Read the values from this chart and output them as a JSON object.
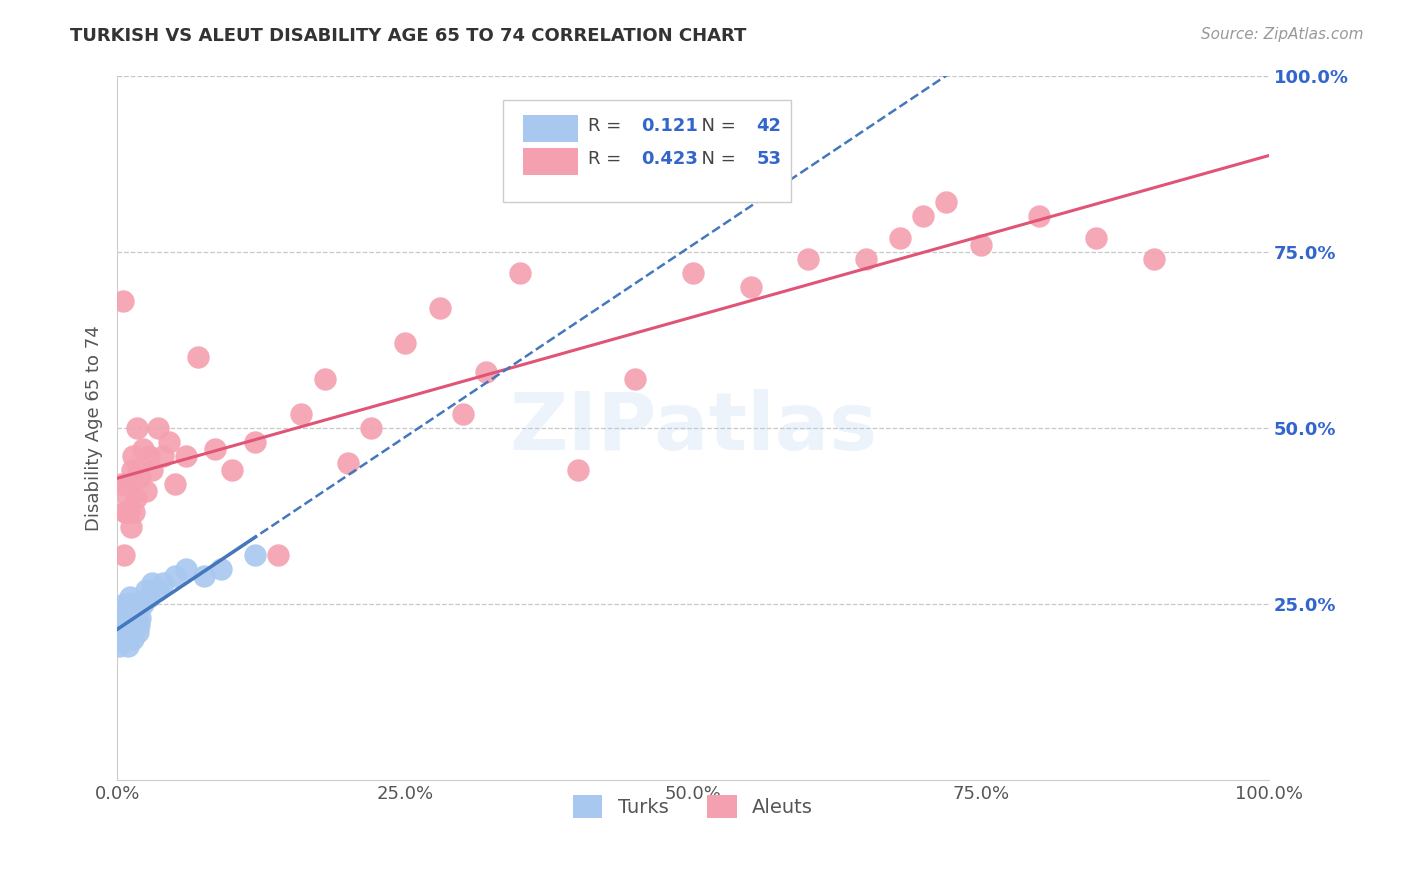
{
  "title": "TURKISH VS ALEUT DISABILITY AGE 65 TO 74 CORRELATION CHART",
  "source": "Source: ZipAtlas.com",
  "ylabel": "Disability Age 65 to 74",
  "xlim": [
    0,
    1
  ],
  "ylim": [
    0,
    1
  ],
  "xticks": [
    0,
    0.25,
    0.5,
    0.75,
    1.0
  ],
  "yticks": [
    0.25,
    0.5,
    0.75,
    1.0
  ],
  "xtick_labels": [
    "0.0%",
    "25.0%",
    "50.0%",
    "75.0%",
    "100.0%"
  ],
  "ytick_labels": [
    "25.0%",
    "50.0%",
    "75.0%",
    "100.0%"
  ],
  "turks_R": 0.121,
  "turks_N": 42,
  "aleuts_R": 0.423,
  "aleuts_N": 53,
  "turks_color": "#a8c8f0",
  "aleuts_color": "#f4a0b0",
  "turks_line_color": "#4477bb",
  "aleuts_line_color": "#e05575",
  "background_color": "#ffffff",
  "grid_color": "#c8c8c8",
  "turks_x": [
    0.002,
    0.003,
    0.004,
    0.004,
    0.005,
    0.005,
    0.006,
    0.006,
    0.007,
    0.007,
    0.008,
    0.008,
    0.009,
    0.009,
    0.01,
    0.01,
    0.011,
    0.011,
    0.012,
    0.012,
    0.013,
    0.013,
    0.014,
    0.015,
    0.015,
    0.016,
    0.016,
    0.017,
    0.018,
    0.019,
    0.02,
    0.022,
    0.025,
    0.028,
    0.03,
    0.035,
    0.04,
    0.05,
    0.06,
    0.075,
    0.09,
    0.12
  ],
  "turks_y": [
    0.19,
    0.2,
    0.22,
    0.24,
    0.2,
    0.23,
    0.21,
    0.25,
    0.2,
    0.22,
    0.21,
    0.24,
    0.19,
    0.23,
    0.22,
    0.25,
    0.2,
    0.26,
    0.21,
    0.23,
    0.22,
    0.24,
    0.2,
    0.21,
    0.25,
    0.22,
    0.24,
    0.23,
    0.21,
    0.22,
    0.23,
    0.25,
    0.27,
    0.26,
    0.28,
    0.27,
    0.28,
    0.29,
    0.3,
    0.29,
    0.3,
    0.32
  ],
  "aleuts_x": [
    0.003,
    0.005,
    0.006,
    0.007,
    0.008,
    0.008,
    0.009,
    0.01,
    0.011,
    0.012,
    0.013,
    0.014,
    0.015,
    0.016,
    0.017,
    0.018,
    0.02,
    0.022,
    0.025,
    0.028,
    0.03,
    0.035,
    0.04,
    0.045,
    0.05,
    0.06,
    0.07,
    0.085,
    0.1,
    0.12,
    0.14,
    0.16,
    0.18,
    0.2,
    0.22,
    0.25,
    0.28,
    0.3,
    0.32,
    0.35,
    0.4,
    0.45,
    0.5,
    0.55,
    0.6,
    0.65,
    0.68,
    0.7,
    0.72,
    0.75,
    0.8,
    0.85,
    0.9
  ],
  "aleuts_y": [
    0.42,
    0.68,
    0.32,
    0.38,
    0.42,
    0.38,
    0.4,
    0.38,
    0.42,
    0.36,
    0.44,
    0.46,
    0.38,
    0.4,
    0.5,
    0.44,
    0.43,
    0.47,
    0.41,
    0.46,
    0.44,
    0.5,
    0.46,
    0.48,
    0.42,
    0.46,
    0.6,
    0.47,
    0.44,
    0.48,
    0.32,
    0.52,
    0.57,
    0.45,
    0.5,
    0.62,
    0.67,
    0.52,
    0.58,
    0.72,
    0.44,
    0.57,
    0.72,
    0.7,
    0.74,
    0.74,
    0.77,
    0.8,
    0.82,
    0.76,
    0.8,
    0.77,
    0.74
  ]
}
